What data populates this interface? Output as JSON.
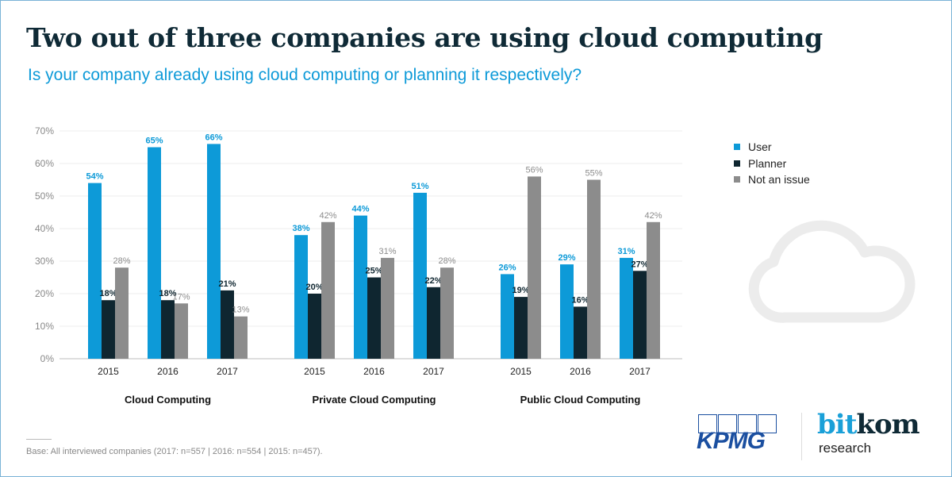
{
  "title": "Two out of three companies are using cloud computing",
  "subtitle": "Is your company already using cloud computing or planning it respectively?",
  "colors": {
    "user": "#0d9ad8",
    "planner": "#0f2630",
    "not_an_issue": "#8c8c8c",
    "title": "#0f2a36",
    "accent": "#0d9ad8",
    "frame": "#7ab3d6"
  },
  "chart_data": {
    "type": "bar",
    "title": "Two out of three companies are using cloud computing",
    "subtitle": "Is your company already using cloud computing or planning it respectively?",
    "xlabel": "",
    "ylabel": "",
    "ylim": [
      0,
      70
    ],
    "yticks": [
      "0%",
      "10%",
      "20%",
      "30%",
      "40%",
      "50%",
      "60%",
      "70%"
    ],
    "ytick_values": [
      0,
      10,
      20,
      30,
      40,
      50,
      60,
      70
    ],
    "grid": true,
    "legend_position": "right",
    "groups": [
      {
        "name": "Cloud Computing",
        "categories": [
          "2015",
          "2016",
          "2017"
        ]
      },
      {
        "name": "Private Cloud Computing",
        "categories": [
          "2015",
          "2016",
          "2017"
        ]
      },
      {
        "name": "Public Cloud Computing",
        "categories": [
          "2015",
          "2016",
          "2017"
        ]
      }
    ],
    "series": [
      {
        "name": "User",
        "color": "#0d9ad8",
        "values": [
          [
            54,
            65,
            66
          ],
          [
            38,
            44,
            51
          ],
          [
            26,
            29,
            31
          ]
        ]
      },
      {
        "name": "Planner",
        "color": "#0f2630",
        "values": [
          [
            18,
            18,
            21
          ],
          [
            20,
            25,
            22
          ],
          [
            19,
            16,
            27
          ]
        ]
      },
      {
        "name": "Not an issue",
        "color": "#8c8c8c",
        "values": [
          [
            28,
            17,
            13
          ],
          [
            42,
            31,
            28
          ],
          [
            56,
            55,
            42
          ]
        ]
      }
    ],
    "unit": "%"
  },
  "legend": {
    "items": [
      {
        "label": "User",
        "color": "#0d9ad8"
      },
      {
        "label": "Planner",
        "color": "#0f2630"
      },
      {
        "label": "Not an issue",
        "color": "#8c8c8c"
      }
    ]
  },
  "decoration": {
    "icon": "cloud-icon"
  },
  "footnote": "Base: All interviewed companies (2017: n=557 |  2016: n=554 | 2015: n=457).",
  "logos": {
    "kpmg": "KPMG",
    "bitkom_bit": "bit",
    "bitkom_kom": "kom",
    "bitkom_sub": "research"
  }
}
